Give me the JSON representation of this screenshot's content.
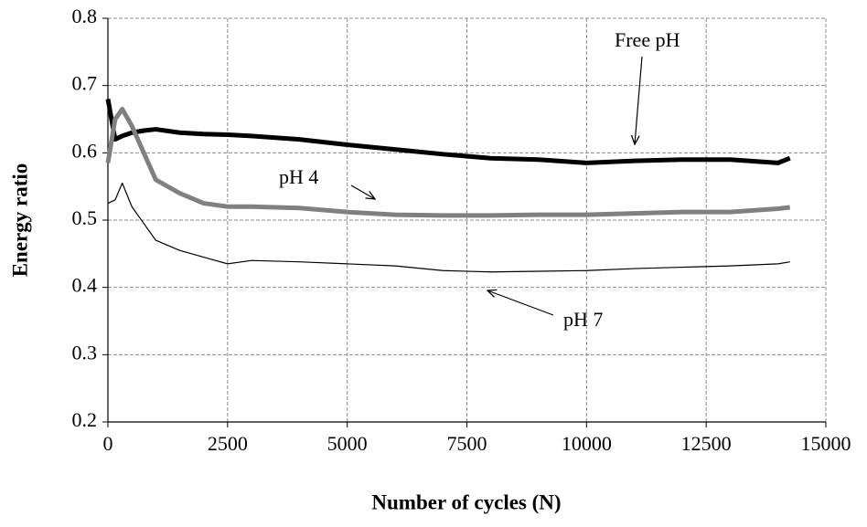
{
  "chart_data": {
    "type": "line",
    "xlabel": "Number of cycles (N)",
    "ylabel": "Energy ratio",
    "x": [
      0,
      150,
      300,
      500,
      750,
      1000,
      1500,
      2000,
      2500,
      3000,
      4000,
      5000,
      6000,
      7000,
      8000,
      9000,
      10000,
      11000,
      12000,
      13000,
      14000,
      14250
    ],
    "series": [
      {
        "name": "Free pH",
        "color": "#000000",
        "line_width": 5,
        "values": [
          0.68,
          0.62,
          0.625,
          0.63,
          0.633,
          0.635,
          0.63,
          0.628,
          0.627,
          0.625,
          0.62,
          0.612,
          0.605,
          0.598,
          0.592,
          0.59,
          0.585,
          0.588,
          0.59,
          0.59,
          0.585,
          0.592
        ]
      },
      {
        "name": "pH 4",
        "color": "#808080",
        "line_width": 5,
        "values": [
          0.585,
          0.65,
          0.665,
          0.64,
          0.6,
          0.56,
          0.54,
          0.525,
          0.52,
          0.52,
          0.518,
          0.512,
          0.508,
          0.507,
          0.507,
          0.508,
          0.508,
          0.51,
          0.512,
          0.512,
          0.517,
          0.519
        ]
      },
      {
        "name": "pH 7",
        "color": "#000000",
        "line_width": 1.2,
        "values": [
          0.525,
          0.53,
          0.555,
          0.52,
          0.495,
          0.47,
          0.455,
          0.445,
          0.435,
          0.44,
          0.438,
          0.435,
          0.432,
          0.425,
          0.423,
          0.424,
          0.425,
          0.428,
          0.43,
          0.432,
          0.435,
          0.438
        ]
      }
    ],
    "xlim": [
      0,
      15000
    ],
    "ylim": [
      0.2,
      0.8
    ],
    "xticks": [
      0,
      2500,
      5000,
      7500,
      10000,
      12500,
      15000
    ],
    "yticks": [
      0.2,
      0.3,
      0.4,
      0.5,
      0.6,
      0.7,
      0.8
    ],
    "grid": true
  }
}
